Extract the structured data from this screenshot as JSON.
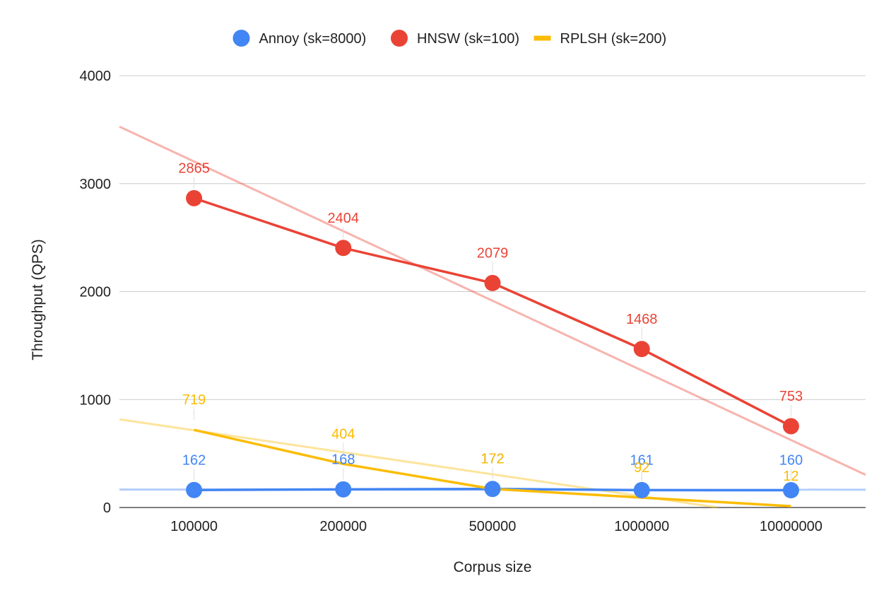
{
  "chart_data": {
    "type": "line",
    "title": "",
    "xlabel": "Corpus size",
    "ylabel": "Throughput (QPS)",
    "categories": [
      "100000",
      "200000",
      "500000",
      "1000000",
      "10000000"
    ],
    "ylim": [
      0,
      4000
    ],
    "yticks": [
      "0",
      "1000",
      "2000",
      "3000",
      "4000"
    ],
    "grid": true,
    "legend_position": "top",
    "series": [
      {
        "name": "Annoy (sk=8000)",
        "color": "#4285f4",
        "marker": "circle",
        "values": [
          162,
          168,
          172,
          161,
          160
        ],
        "labels": [
          "162",
          "168",
          "172",
          "161",
          "160"
        ],
        "trendline": [
          166,
          165
        ]
      },
      {
        "name": "HNSW (sk=100)",
        "color": "#ea4335",
        "marker": "circle",
        "values": [
          2865,
          2404,
          2079,
          1468,
          753
        ],
        "labels": [
          "2865",
          "2404",
          "2079",
          "1468",
          "753"
        ],
        "trendline": [
          3205,
          625
        ]
      },
      {
        "name": "RPLSH (sk=200)",
        "color": "#fbbc04",
        "marker": "line",
        "values": [
          719,
          404,
          172,
          92,
          12
        ],
        "labels": [
          "719",
          "404",
          "172",
          "92",
          "12"
        ],
        "trendline": [
          715,
          -100
        ]
      }
    ]
  }
}
